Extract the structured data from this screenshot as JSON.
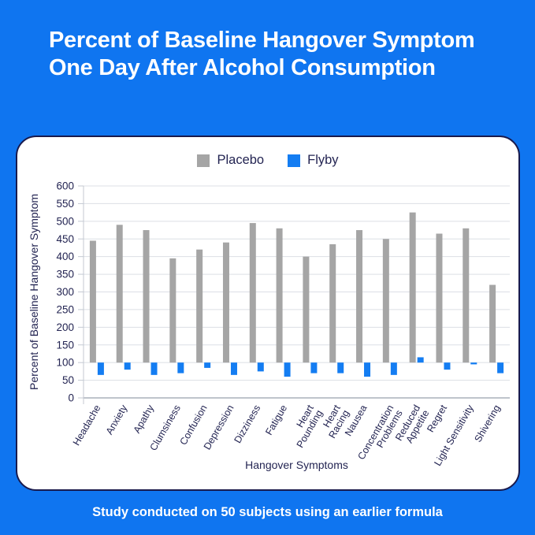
{
  "header": {
    "title": "Percent of Baseline Hangover Symptom One Day After Alcohol Consumption"
  },
  "footer": {
    "note": "Study conducted on 50 subjects using an earlier formula"
  },
  "colors": {
    "background_blue": "#0f75f0",
    "card_white": "#ffffff",
    "card_border_navy": "#191a4d",
    "axis_text_navy": "#232452",
    "placebo_gray": "#a5a5a5",
    "flyby_blue": "#147df2",
    "gridline_gray": "#dcdfe5",
    "zero_axis_gray": "#99a0ac"
  },
  "chart_data": {
    "type": "bar",
    "title": "",
    "xlabel": "Hangover Symptoms",
    "ylabel": "Percent of Baseline Hangover Symptom",
    "ylim": [
      0,
      600
    ],
    "ytick_step": 50,
    "bar_baseline": 100,
    "grid": true,
    "legend_position": "top",
    "categories": [
      "Headache",
      "Anxiety",
      "Apathy",
      "Clumsiness",
      "Confusion",
      "Depression",
      "Dizziness",
      "Fatigue",
      "Heart\nPounding",
      "Heart\nRacing",
      "Nausea",
      "Concentration\nProblems",
      "Reduced\nAppetite",
      "Regret",
      "Light Sensitivity",
      "Shivering"
    ],
    "series": [
      {
        "name": "Placebo",
        "color": "#a5a5a5",
        "values": [
          445,
          490,
          475,
          395,
          420,
          440,
          495,
          480,
          400,
          435,
          475,
          450,
          525,
          465,
          480,
          320
        ]
      },
      {
        "name": "Flyby",
        "color": "#147df2",
        "values": [
          65,
          80,
          65,
          70,
          85,
          65,
          75,
          60,
          70,
          70,
          60,
          65,
          115,
          80,
          95,
          70
        ]
      }
    ]
  }
}
